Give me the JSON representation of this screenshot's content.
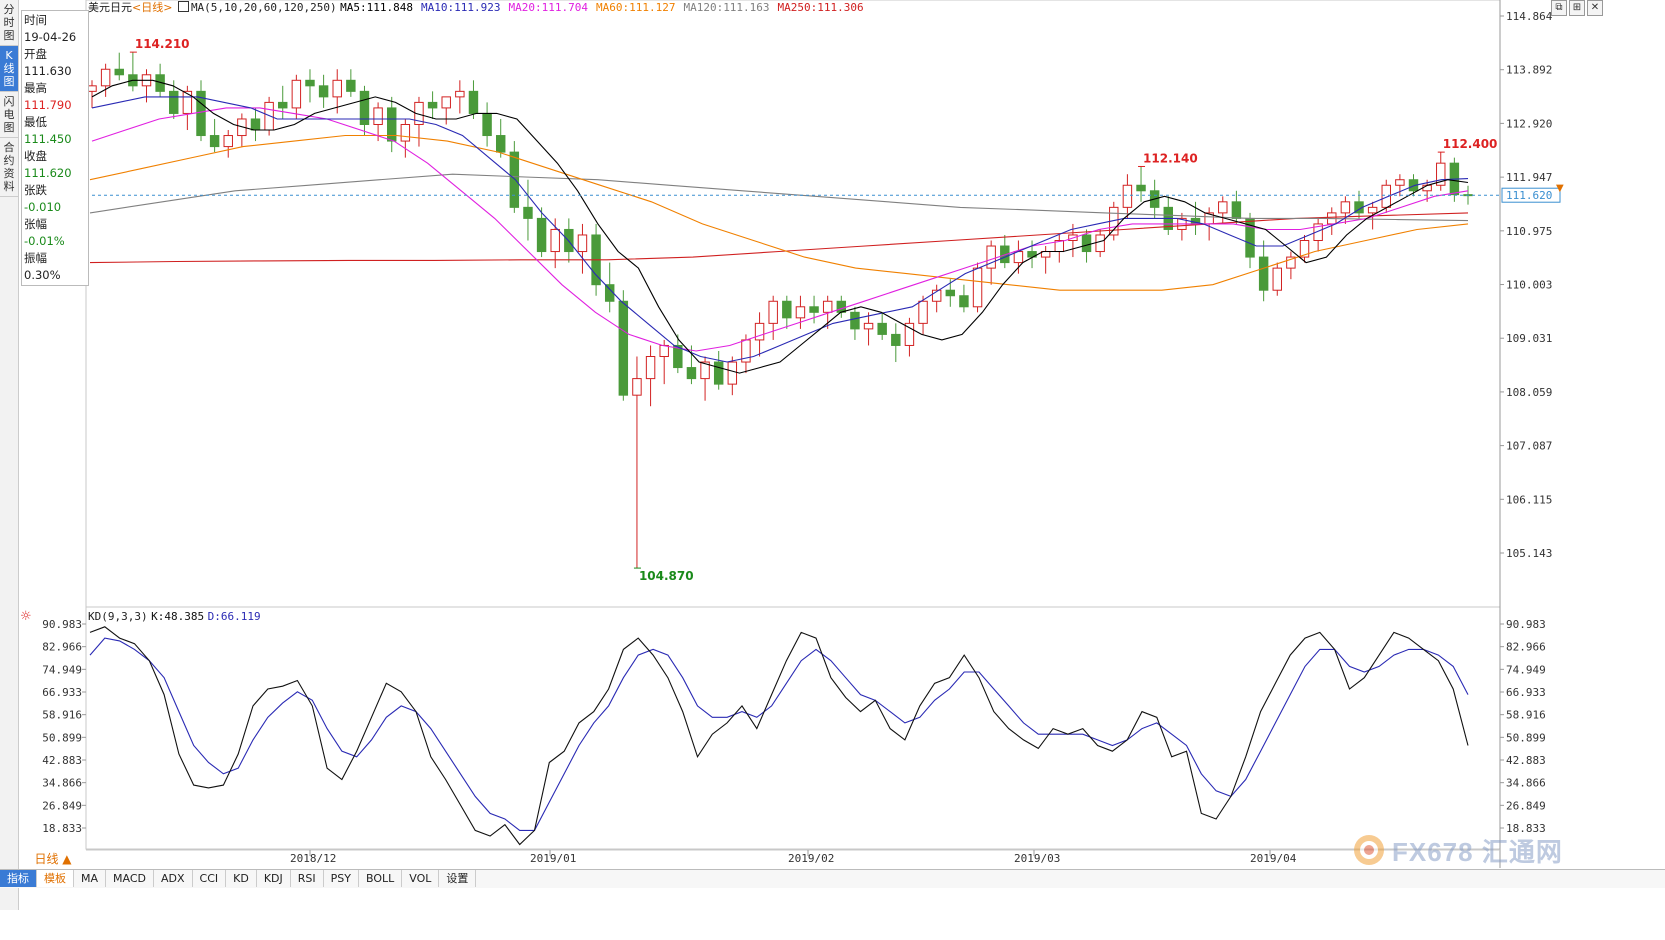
{
  "nav": {
    "tabs": [
      "分时图",
      "K线图",
      "闪电图",
      "合约资料"
    ],
    "active": 1
  },
  "symbol": "美元日元",
  "period_tag": "<日线>",
  "ma_legend": {
    "params": "MA(5,10,20,60,120,250)",
    "items": [
      {
        "label": "MA5:111.848",
        "color": "#000000"
      },
      {
        "label": "MA10:111.923",
        "color": "#2a2ab4"
      },
      {
        "label": "MA20:111.704",
        "color": "#e020e0"
      },
      {
        "label": "MA60:111.127",
        "color": "#f08000"
      },
      {
        "label": "MA120:111.163",
        "color": "#808080"
      },
      {
        "label": "MA250:111.306",
        "color": "#d02020"
      }
    ]
  },
  "info": {
    "time_label": "时间",
    "time": "19-04-26",
    "open_label": "开盘",
    "open": "111.630",
    "high_label": "最高",
    "high": "111.790",
    "low_label": "最低",
    "low": "111.450",
    "close_label": "收盘",
    "close": "111.620",
    "change_label": "张跌",
    "change": "-0.010",
    "pct_label": "张幅",
    "pct": "-0.01%",
    "amp_label": "振幅",
    "amp": "0.30%"
  },
  "price_axis": [
    "114.864",
    "113.892",
    "112.920",
    "111.947",
    "110.975",
    "110.003",
    "109.031",
    "108.059",
    "107.087",
    "106.115",
    "105.143"
  ],
  "current_price": "111.620",
  "annotations": [
    {
      "text": "114.210",
      "color": "#d22"
    },
    {
      "text": "112.140",
      "color": "#d22"
    },
    {
      "text": "112.400",
      "color": "#d22"
    },
    {
      "text": "104.870",
      "color": "#1a8a1a"
    }
  ],
  "kd_legend": {
    "params": "KD(9,3,3)",
    "k": "K:48.385",
    "d": "D:66.119"
  },
  "kd_axis": [
    "90.983",
    "82.966",
    "74.949",
    "66.933",
    "58.916",
    "50.899",
    "42.883",
    "34.866",
    "26.849",
    "18.833"
  ],
  "dates": [
    "2018/12",
    "2019/01",
    "2019/02",
    "2019/03",
    "2019/04"
  ],
  "period_button": "日线 ▲",
  "bottom_tabs": [
    "指标",
    "模板",
    "MA",
    "MACD",
    "ADX",
    "CCI",
    "KD",
    "KDJ",
    "RSI",
    "PSY",
    "BOLL",
    "VOL",
    "设置"
  ],
  "logo_text": "FX678 汇通网",
  "colors": {
    "up": "#d22222",
    "down": "#4a9a3a",
    "ma5": "#000000",
    "ma10": "#2a2ab4",
    "ma20": "#e020e0",
    "ma60": "#f08000",
    "ma120": "#808080",
    "ma250": "#d02020",
    "k": "#111111",
    "d": "#2a2ab4"
  },
  "chart_data": {
    "type": "candlestick",
    "title": "美元日元 日线",
    "ylim": [
      104.87,
      114.864
    ],
    "candles_ohlc": [
      [
        113.5,
        113.7,
        113.2,
        113.6
      ],
      [
        113.6,
        114.0,
        113.4,
        113.9
      ],
      [
        113.9,
        114.2,
        113.7,
        113.8
      ],
      [
        113.8,
        114.21,
        113.5,
        113.6
      ],
      [
        113.6,
        113.9,
        113.3,
        113.8
      ],
      [
        113.8,
        114.0,
        113.4,
        113.5
      ],
      [
        113.5,
        113.7,
        113.0,
        113.1
      ],
      [
        113.1,
        113.6,
        112.8,
        113.5
      ],
      [
        113.5,
        113.7,
        112.6,
        112.7
      ],
      [
        112.7,
        113.0,
        112.4,
        112.5
      ],
      [
        112.5,
        112.8,
        112.3,
        112.7
      ],
      [
        112.7,
        113.1,
        112.5,
        113.0
      ],
      [
        113.0,
        113.2,
        112.6,
        112.8
      ],
      [
        112.8,
        113.4,
        112.7,
        113.3
      ],
      [
        113.3,
        113.6,
        113.0,
        113.2
      ],
      [
        113.2,
        113.8,
        113.0,
        113.7
      ],
      [
        113.7,
        113.9,
        113.3,
        113.6
      ],
      [
        113.6,
        113.8,
        113.2,
        113.4
      ],
      [
        113.4,
        113.9,
        113.1,
        113.7
      ],
      [
        113.7,
        113.9,
        113.4,
        113.5
      ],
      [
        113.5,
        113.6,
        112.7,
        112.9
      ],
      [
        112.9,
        113.3,
        112.6,
        113.2
      ],
      [
        113.2,
        113.4,
        112.4,
        112.6
      ],
      [
        112.6,
        113.0,
        112.3,
        112.9
      ],
      [
        112.9,
        113.4,
        112.5,
        113.3
      ],
      [
        113.3,
        113.5,
        113.0,
        113.2
      ],
      [
        113.2,
        113.4,
        112.9,
        113.4
      ],
      [
        113.4,
        113.7,
        113.1,
        113.5
      ],
      [
        113.5,
        113.7,
        113.0,
        113.1
      ],
      [
        113.1,
        113.3,
        112.5,
        112.7
      ],
      [
        112.7,
        113.0,
        112.3,
        112.4
      ],
      [
        112.4,
        112.6,
        111.3,
        111.4
      ],
      [
        111.4,
        111.9,
        110.8,
        111.2
      ],
      [
        111.2,
        111.4,
        110.5,
        110.6
      ],
      [
        110.6,
        111.2,
        110.3,
        111.0
      ],
      [
        111.0,
        111.2,
        110.4,
        110.6
      ],
      [
        110.6,
        111.1,
        110.2,
        110.9
      ],
      [
        110.9,
        111.1,
        109.8,
        110.0
      ],
      [
        110.0,
        110.4,
        109.5,
        109.7
      ],
      [
        109.7,
        109.9,
        107.9,
        108.0
      ],
      [
        108.0,
        108.7,
        104.87,
        108.3
      ],
      [
        108.3,
        108.9,
        107.8,
        108.7
      ],
      [
        108.7,
        109.0,
        108.2,
        108.9
      ],
      [
        108.9,
        109.1,
        108.4,
        108.5
      ],
      [
        108.5,
        108.9,
        108.2,
        108.3
      ],
      [
        108.3,
        108.7,
        107.9,
        108.6
      ],
      [
        108.6,
        108.8,
        108.1,
        108.2
      ],
      [
        108.2,
        108.7,
        108.0,
        108.6
      ],
      [
        108.6,
        109.1,
        108.4,
        109.0
      ],
      [
        109.0,
        109.5,
        108.7,
        109.3
      ],
      [
        109.3,
        109.8,
        109.0,
        109.7
      ],
      [
        109.7,
        109.8,
        109.2,
        109.4
      ],
      [
        109.4,
        109.8,
        109.2,
        109.6
      ],
      [
        109.6,
        109.8,
        109.3,
        109.5
      ],
      [
        109.5,
        109.8,
        109.2,
        109.7
      ],
      [
        109.7,
        109.8,
        109.4,
        109.5
      ],
      [
        109.5,
        109.6,
        109.0,
        109.2
      ],
      [
        109.2,
        109.5,
        108.9,
        109.3
      ],
      [
        109.3,
        109.5,
        109.0,
        109.1
      ],
      [
        109.1,
        109.3,
        108.6,
        108.9
      ],
      [
        108.9,
        109.4,
        108.7,
        109.3
      ],
      [
        109.3,
        109.8,
        109.1,
        109.7
      ],
      [
        109.7,
        110.0,
        109.5,
        109.9
      ],
      [
        109.9,
        110.1,
        109.6,
        109.8
      ],
      [
        109.8,
        110.0,
        109.5,
        109.6
      ],
      [
        109.6,
        110.4,
        109.5,
        110.3
      ],
      [
        110.3,
        110.8,
        110.0,
        110.7
      ],
      [
        110.7,
        110.9,
        110.3,
        110.4
      ],
      [
        110.4,
        110.8,
        110.2,
        110.6
      ],
      [
        110.6,
        110.8,
        110.3,
        110.5
      ],
      [
        110.5,
        110.7,
        110.2,
        110.6
      ],
      [
        110.6,
        110.9,
        110.4,
        110.8
      ],
      [
        110.8,
        111.1,
        110.5,
        110.9
      ],
      [
        110.9,
        111.0,
        110.4,
        110.6
      ],
      [
        110.6,
        111.0,
        110.5,
        110.9
      ],
      [
        110.9,
        111.5,
        110.8,
        111.4
      ],
      [
        111.4,
        112.0,
        111.2,
        111.8
      ],
      [
        111.8,
        112.14,
        111.5,
        111.7
      ],
      [
        111.7,
        111.9,
        111.2,
        111.4
      ],
      [
        111.4,
        111.6,
        110.9,
        111.0
      ],
      [
        111.0,
        111.3,
        110.8,
        111.2
      ],
      [
        111.2,
        111.5,
        110.9,
        111.1
      ],
      [
        111.1,
        111.4,
        110.8,
        111.3
      ],
      [
        111.3,
        111.6,
        111.1,
        111.5
      ],
      [
        111.5,
        111.7,
        111.1,
        111.2
      ],
      [
        111.2,
        111.3,
        110.3,
        110.5
      ],
      [
        110.5,
        110.8,
        109.7,
        109.9
      ],
      [
        109.9,
        110.4,
        109.8,
        110.3
      ],
      [
        110.3,
        110.6,
        110.1,
        110.5
      ],
      [
        110.5,
        110.9,
        110.4,
        110.8
      ],
      [
        110.8,
        111.2,
        110.6,
        111.1
      ],
      [
        111.1,
        111.4,
        110.9,
        111.3
      ],
      [
        111.3,
        111.6,
        111.1,
        111.5
      ],
      [
        111.5,
        111.7,
        111.2,
        111.3
      ],
      [
        111.3,
        111.5,
        111.0,
        111.4
      ],
      [
        111.4,
        111.9,
        111.3,
        111.8
      ],
      [
        111.8,
        112.0,
        111.6,
        111.9
      ],
      [
        111.9,
        112.0,
        111.6,
        111.7
      ],
      [
        111.7,
        111.9,
        111.5,
        111.8
      ],
      [
        111.8,
        112.4,
        111.7,
        112.2
      ],
      [
        112.2,
        112.3,
        111.5,
        111.63
      ],
      [
        111.63,
        111.79,
        111.45,
        111.62
      ]
    ],
    "kd_k": [
      88,
      90,
      86,
      84,
      78,
      66,
      45,
      34,
      33,
      34,
      45,
      62,
      68,
      69,
      71,
      62,
      40,
      36,
      46,
      58,
      70,
      67,
      60,
      44,
      36,
      27,
      18,
      16,
      20,
      13,
      18,
      42,
      46,
      56,
      60,
      68,
      82,
      86,
      80,
      72,
      60,
      44,
      52,
      56,
      62,
      54,
      66,
      78,
      88,
      86,
      72,
      65,
      60,
      64,
      54,
      50,
      62,
      70,
      72,
      80,
      72,
      60,
      54,
      50,
      47,
      54,
      52,
      54,
      48,
      46,
      50,
      60,
      58,
      44,
      46,
      24,
      22,
      30,
      44,
      60,
      70,
      80,
      86,
      88,
      82,
      68,
      72,
      80,
      88,
      86,
      82,
      78,
      68,
      48
    ],
    "kd_d": [
      80,
      86,
      85,
      82,
      78,
      72,
      60,
      48,
      42,
      38,
      40,
      50,
      58,
      63,
      67,
      64,
      54,
      46,
      44,
      50,
      58,
      62,
      60,
      54,
      46,
      38,
      30,
      24,
      22,
      18,
      18,
      28,
      38,
      48,
      56,
      62,
      72,
      80,
      82,
      80,
      72,
      62,
      58,
      58,
      60,
      58,
      62,
      70,
      78,
      82,
      78,
      72,
      66,
      64,
      60,
      56,
      58,
      64,
      68,
      74,
      74,
      68,
      62,
      56,
      52,
      52,
      52,
      52,
      50,
      48,
      50,
      54,
      56,
      52,
      48,
      38,
      32,
      30,
      36,
      46,
      56,
      66,
      76,
      82,
      82,
      76,
      74,
      76,
      80,
      82,
      82,
      80,
      76,
      66
    ],
    "ma5": [
      113.4,
      113.6,
      113.7,
      113.7,
      113.6,
      113.4,
      113.1,
      112.9,
      112.8,
      112.8,
      112.9,
      113.1,
      113.2,
      113.3,
      113.4,
      113.3,
      113.1,
      113.0,
      113.0,
      113.1,
      113.1,
      113.0,
      112.6,
      112.2,
      111.7,
      111.1,
      110.6,
      110.3,
      109.6,
      109.0,
      108.6,
      108.5,
      108.4,
      108.5,
      108.6,
      108.9,
      109.2,
      109.5,
      109.6,
      109.5,
      109.3,
      109.1,
      109.0,
      109.1,
      109.5,
      110.0,
      110.4,
      110.6,
      110.6,
      110.7,
      110.8,
      111.2,
      111.5,
      111.6,
      111.5,
      111.3,
      111.2,
      111.1,
      111.0,
      110.7,
      110.4,
      110.5,
      110.9,
      111.2,
      111.4,
      111.6,
      111.8,
      111.9,
      111.85
    ],
    "ma10": [
      113.2,
      113.3,
      113.4,
      113.4,
      113.4,
      113.3,
      113.2,
      113.0,
      113.0,
      113.0,
      113.0,
      113.0,
      113.0,
      112.9,
      112.7,
      112.3,
      111.9,
      111.3,
      110.8,
      110.2,
      109.7,
      109.3,
      108.9,
      108.7,
      108.6,
      108.7,
      108.9,
      109.1,
      109.3,
      109.4,
      109.5,
      109.6,
      109.9,
      110.2,
      110.4,
      110.6,
      110.8,
      111.0,
      111.1,
      111.2,
      111.2,
      111.2,
      111.1,
      110.9,
      110.7,
      110.7,
      110.9,
      111.1,
      111.4,
      111.6,
      111.8,
      111.9,
      111.92
    ],
    "ma20": [
      112.6,
      112.8,
      113.0,
      113.1,
      113.2,
      113.2,
      113.1,
      113.0,
      112.8,
      112.6,
      112.2,
      111.7,
      111.2,
      110.6,
      110.0,
      109.5,
      109.1,
      108.9,
      108.8,
      108.9,
      109.1,
      109.3,
      109.5,
      109.7,
      109.9,
      110.1,
      110.3,
      110.5,
      110.7,
      110.8,
      111.0,
      111.1,
      111.1,
      111.1,
      111.1,
      111.0,
      111.0,
      111.1,
      111.2,
      111.4,
      111.6,
      111.7
    ],
    "ma60": [
      111.9,
      112.1,
      112.3,
      112.5,
      112.6,
      112.7,
      112.7,
      112.6,
      112.4,
      112.1,
      111.8,
      111.5,
      111.1,
      110.8,
      110.5,
      110.3,
      110.2,
      110.1,
      110.0,
      109.9,
      109.9,
      109.9,
      110.0,
      110.3,
      110.6,
      110.8,
      111.0,
      111.1
    ],
    "ma120": [
      111.3,
      111.5,
      111.7,
      111.8,
      111.9,
      112.0,
      111.95,
      111.9,
      111.8,
      111.7,
      111.6,
      111.5,
      111.4,
      111.35,
      111.3,
      111.25,
      111.2,
      111.2,
      111.18,
      111.16
    ],
    "ma250": [
      110.4,
      110.42,
      110.43,
      110.44,
      110.44,
      110.45,
      110.45,
      110.5,
      110.6,
      110.7,
      110.8,
      110.9,
      111.0,
      111.1,
      111.2,
      111.25,
      111.3
    ]
  }
}
